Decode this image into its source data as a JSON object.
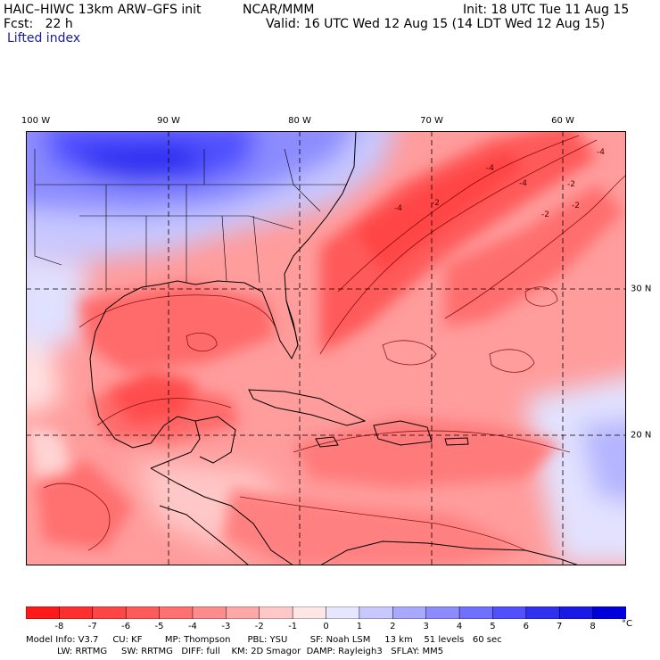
{
  "header": {
    "model": "HAIC–HIWC 13km ARW–GFS init",
    "center": "NCAR/MMM",
    "init": "Init: 18 UTC Tue 11 Aug 15",
    "fcst": "Fcst:   22 h",
    "valid": "Valid: 16 UTC Wed 12 Aug 15 (14 LDT Wed 12 Aug 15)",
    "field": "Lifted index"
  },
  "map": {
    "lon_labels": [
      "100 W",
      "90 W",
      "80 W",
      "70 W",
      "60 W"
    ],
    "lat_labels": [
      "30 N",
      "20 N"
    ],
    "contour_labels": [
      "-4",
      "-2",
      "-2",
      "-2",
      "-4",
      "-4",
      "-4",
      "-2"
    ]
  },
  "colorbar": {
    "ticks": [
      "-8",
      "-7",
      "-6",
      "-5",
      "-4",
      "-3",
      "-2",
      "-1",
      "0",
      "1",
      "2",
      "3",
      "4",
      "5",
      "6",
      "7",
      "8"
    ],
    "unit": "°C",
    "colors": [
      "#ff1a1a",
      "#ff2f2f",
      "#ff4545",
      "#ff5a5a",
      "#ff7070",
      "#ff8c8c",
      "#ffa8a8",
      "#ffc8c8",
      "#ffe6e6",
      "#e6e6ff",
      "#c8c8ff",
      "#a8a8ff",
      "#8c8cff",
      "#7070ff",
      "#5050ff",
      "#3030f0",
      "#1a1ae6",
      "#0000dc"
    ]
  },
  "model_info": {
    "line1": "Model Info: V3.7     CU: KF        MP: Thompson      PBL: YSU        SF: Noah LSM     13 km    51 levels   60 sec",
    "line2": "           LW: RRTMG     SW: RRTMG   DIFF: full    KM: 2D Smagor  DAMP: Rayleigh3   SFLAY: MM5"
  }
}
